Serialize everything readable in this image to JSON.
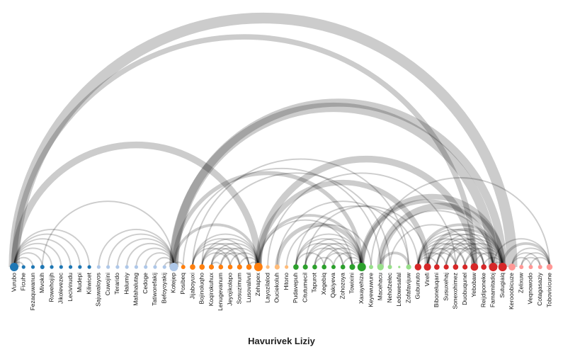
{
  "chart_data": {
    "type": "arc-diagram",
    "title": "Havurivek Liziy",
    "groups": {
      "blue": "#1f77b4",
      "lightblue": "#aec7e8",
      "orange": "#ff7f0e",
      "lightorange": "#ffbb78",
      "green": "#2ca02c",
      "lightgreen": "#98df8a",
      "red": "#d62728",
      "pink": "#ff9896"
    },
    "nodes": [
      {
        "name": "Vurubo",
        "group": "blue"
      },
      {
        "name": "Ficuhe",
        "group": "blue"
      },
      {
        "name": "Fezaquwanun",
        "group": "blue"
      },
      {
        "name": "Mivokih",
        "group": "blue"
      },
      {
        "name": "Rowehojijh",
        "group": "blue"
      },
      {
        "name": "Jikolevezec",
        "group": "blue"
      },
      {
        "name": "Lecivinudu",
        "group": "blue"
      },
      {
        "name": "Mudepi",
        "group": "blue"
      },
      {
        "name": "Kiliwicet",
        "group": "blue"
      },
      {
        "name": "Sajuwaloyos",
        "group": "lightblue"
      },
      {
        "name": "Cuwojini",
        "group": "lightblue"
      },
      {
        "name": "Terarido",
        "group": "lightblue"
      },
      {
        "name": "Halumiy",
        "group": "lightblue"
      },
      {
        "name": "Mafahalutag",
        "group": "lightblue"
      },
      {
        "name": "Cedoge",
        "group": "lightblue"
      },
      {
        "name": "Tatiworefakij",
        "group": "lightblue"
      },
      {
        "name": "Befoyoyakij",
        "group": "lightblue"
      },
      {
        "name": "Kotejep",
        "group": "lightblue"
      },
      {
        "name": "Posibeq",
        "group": "orange"
      },
      {
        "name": "Jijaboyuxi",
        "group": "orange"
      },
      {
        "name": "Bojinoluqho",
        "group": "orange"
      },
      {
        "name": "Koqirokuhux",
        "group": "orange"
      },
      {
        "name": "Lenugevanum",
        "group": "orange"
      },
      {
        "name": "Jeyojikolapo",
        "group": "orange"
      },
      {
        "name": "Sosuzimum",
        "group": "orange"
      },
      {
        "name": "Lusovalivul",
        "group": "orange"
      },
      {
        "name": "Zehapex",
        "group": "orange"
      },
      {
        "name": "Layozilalod",
        "group": "lightorange"
      },
      {
        "name": "Ouciekoluh",
        "group": "lightorange"
      },
      {
        "name": "Hitono",
        "group": "lightorange"
      },
      {
        "name": "Pudavepuh",
        "group": "green"
      },
      {
        "name": "Citutumecil",
        "group": "green"
      },
      {
        "name": "Tapurot",
        "group": "green"
      },
      {
        "name": "Xegebiq",
        "group": "green"
      },
      {
        "name": "Qakiyeva",
        "group": "green"
      },
      {
        "name": "Zohozoya",
        "group": "green"
      },
      {
        "name": "Towixini",
        "group": "green"
      },
      {
        "name": "Xaxayehiza",
        "group": "green"
      },
      {
        "name": "Keyewuwure",
        "group": "lightgreen"
      },
      {
        "name": "Macehacu",
        "group": "lightgreen"
      },
      {
        "name": "Nehofzelec",
        "group": "lightgreen"
      },
      {
        "name": "Ledowesafal",
        "group": "lightgreen"
      },
      {
        "name": "Zofafavijuw",
        "group": "lightgreen"
      },
      {
        "name": "Gubunuto",
        "group": "red"
      },
      {
        "name": "Virefi",
        "group": "red"
      },
      {
        "name": "Biboneluqani",
        "group": "red"
      },
      {
        "name": "Susuxehaj",
        "group": "red"
      },
      {
        "name": "Sonexohimez",
        "group": "red"
      },
      {
        "name": "Duobuqunel",
        "group": "red"
      },
      {
        "name": "Yebobaw",
        "group": "red"
      },
      {
        "name": "Reijdiponeke",
        "group": "red"
      },
      {
        "name": "Famamitadoj",
        "group": "red"
      },
      {
        "name": "Sutugiaiq",
        "group": "red"
      },
      {
        "name": "Kerooobicuze",
        "group": "pink"
      },
      {
        "name": "Zelixuw",
        "group": "pink"
      },
      {
        "name": "Veqnowodo",
        "group": "pink"
      },
      {
        "name": "Cotagasaziy",
        "group": "pink"
      },
      {
        "name": "Tobovixicune",
        "group": "pink"
      }
    ],
    "links": [
      {
        "source": "Vurubo",
        "target": "Kerooobicuze",
        "value": 8
      },
      {
        "source": "Vurubo",
        "target": "Yebobaw",
        "value": 4
      },
      {
        "source": "Vurubo",
        "target": "Zehapex",
        "value": 5
      },
      {
        "source": "Vurubo",
        "target": "Ficuhe",
        "value": 1
      },
      {
        "source": "Vurubo",
        "target": "Fezaquwanun",
        "value": 1
      },
      {
        "source": "Vurubo",
        "target": "Mivokih",
        "value": 1
      },
      {
        "source": "Vurubo",
        "target": "Rowehojijh",
        "value": 1
      },
      {
        "source": "Vurubo",
        "target": "Jikolevezec",
        "value": 1
      },
      {
        "source": "Vurubo",
        "target": "Lecivinudu",
        "value": 1
      },
      {
        "source": "Vurubo",
        "target": "Mudepi",
        "value": 1
      },
      {
        "source": "Vurubo",
        "target": "Kiliwicet",
        "value": 1
      },
      {
        "source": "Mivokih",
        "target": "Kotejep",
        "value": 1
      },
      {
        "source": "Sajuwaloyos",
        "target": "Kotejep",
        "value": 1
      },
      {
        "source": "Cuwojini",
        "target": "Kotejep",
        "value": 1
      },
      {
        "source": "Terarido",
        "target": "Kotejep",
        "value": 1
      },
      {
        "source": "Halumiy",
        "target": "Kotejep",
        "value": 1
      },
      {
        "source": "Mafahalutag",
        "target": "Kotejep",
        "value": 1
      },
      {
        "source": "Cedoge",
        "target": "Kotejep",
        "value": 1
      },
      {
        "source": "Tatiworefakij",
        "target": "Kotejep",
        "value": 1
      },
      {
        "source": "Befoyoyakij",
        "target": "Kotejep",
        "value": 1
      },
      {
        "source": "Kotejep",
        "target": "Famamitadoj",
        "value": 7
      },
      {
        "source": "Kotejep",
        "target": "Sutugiaiq",
        "value": 6
      },
      {
        "source": "Kotejep",
        "target": "Xaxayehiza",
        "value": 3
      },
      {
        "source": "Kotejep",
        "target": "Zehapex",
        "value": 2
      },
      {
        "source": "Kotejep",
        "target": "Posibeq",
        "value": 1
      },
      {
        "source": "Posibeq",
        "target": "Macehacu",
        "value": 1
      },
      {
        "source": "Jijaboyuxi",
        "target": "Zofafavijuw",
        "value": 1
      },
      {
        "source": "Bojinoluqho",
        "target": "Nehofzelec",
        "value": 1
      },
      {
        "source": "Jijaboyuxi",
        "target": "Zehapex",
        "value": 1
      },
      {
        "source": "Bojinoluqho",
        "target": "Zehapex",
        "value": 1
      },
      {
        "source": "Koqirokuhux",
        "target": "Zehapex",
        "value": 1
      },
      {
        "source": "Lenugevanum",
        "target": "Zehapex",
        "value": 1
      },
      {
        "source": "Jeyojikolapo",
        "target": "Zehapex",
        "value": 1
      },
      {
        "source": "Sosuzimum",
        "target": "Zehapex",
        "value": 1
      },
      {
        "source": "Lusovalivul",
        "target": "Zehapex",
        "value": 1
      },
      {
        "source": "Jijaboyuxi",
        "target": "Lusovalivul",
        "value": 1
      },
      {
        "source": "Bojinoluqho",
        "target": "Lusovalivul",
        "value": 1
      },
      {
        "source": "Koqirokuhux",
        "target": "Lusovalivul",
        "value": 1
      },
      {
        "source": "Lenugevanum",
        "target": "Lusovalivul",
        "value": 1
      },
      {
        "source": "Jijaboyuxi",
        "target": "Sosuzimum",
        "value": 1
      },
      {
        "source": "Bojinoluqho",
        "target": "Sosuzimum",
        "value": 1
      },
      {
        "source": "Koqirokuhux",
        "target": "Sosuzimum",
        "value": 1
      },
      {
        "source": "Jijaboyuxi",
        "target": "Jeyojikolapo",
        "value": 1
      },
      {
        "source": "Bojinoluqho",
        "target": "Jeyojikolapo",
        "value": 1
      },
      {
        "source": "Koqirokuhux",
        "target": "Lenugevanum",
        "value": 1
      },
      {
        "source": "Zehapex",
        "target": "Virefi",
        "value": 4
      },
      {
        "source": "Zehapex",
        "target": "Yebobaw",
        "value": 5
      },
      {
        "source": "Zehapex",
        "target": "Xaxayehiza",
        "value": 2
      },
      {
        "source": "Zehapex",
        "target": "Towixini",
        "value": 1
      },
      {
        "source": "Layozilalod",
        "target": "Sonexohimez",
        "value": 1
      },
      {
        "source": "Ouciekoluh",
        "target": "Zofafavijuw",
        "value": 1
      },
      {
        "source": "Ouciekoluh",
        "target": "Xaxayehiza",
        "value": 3
      },
      {
        "source": "Hitono",
        "target": "Keyewuwure",
        "value": 1
      },
      {
        "source": "Pudavepuh",
        "target": "Xaxayehiza",
        "value": 1
      },
      {
        "source": "Citutumecil",
        "target": "Xaxayehiza",
        "value": 1
      },
      {
        "source": "Tapurot",
        "target": "Xaxayehiza",
        "value": 1
      },
      {
        "source": "Xegebiq",
        "target": "Xaxayehiza",
        "value": 1
      },
      {
        "source": "Qakiyeva",
        "target": "Xaxayehiza",
        "value": 1
      },
      {
        "source": "Zohozoya",
        "target": "Xaxayehiza",
        "value": 1
      },
      {
        "source": "Towixini",
        "target": "Xaxayehiza",
        "value": 1
      },
      {
        "source": "Pudavepuh",
        "target": "Towixini",
        "value": 1
      },
      {
        "source": "Citutumecil",
        "target": "Towixini",
        "value": 1
      },
      {
        "source": "Tapurot",
        "target": "Towixini",
        "value": 1
      },
      {
        "source": "Xegebiq",
        "target": "Towixini",
        "value": 1
      },
      {
        "source": "Pudavepuh",
        "target": "Zohozoya",
        "value": 1
      },
      {
        "source": "Citutumecil",
        "target": "Zohozoya",
        "value": 1
      },
      {
        "source": "Tapurot",
        "target": "Qakiyeva",
        "value": 1
      },
      {
        "source": "Pudavepuh",
        "target": "Xegebiq",
        "value": 1
      },
      {
        "source": "Xaxayehiza",
        "target": "Sutugiaiq",
        "value": 4
      },
      {
        "source": "Xaxayehiza",
        "target": "Famamitadoj",
        "value": 3
      },
      {
        "source": "Pudavepuh",
        "target": "Gubunuto",
        "value": 1
      },
      {
        "source": "Citutumecil",
        "target": "Virefi",
        "value": 1
      },
      {
        "source": "Keyewuwure",
        "target": "Tobovixicune",
        "value": 1
      },
      {
        "source": "Macehacu",
        "target": "Sutugiaiq",
        "value": 5
      },
      {
        "source": "Macehacu",
        "target": "Zofafavijuw",
        "value": 2
      },
      {
        "source": "Macehacu",
        "target": "Famamitadoj",
        "value": 1
      },
      {
        "source": "Nehofzelec",
        "target": "Yebobaw",
        "value": 1
      },
      {
        "source": "Gubunuto",
        "target": "Sutugiaiq",
        "value": 2
      },
      {
        "source": "Gubunuto",
        "target": "Famamitadoj",
        "value": 1
      },
      {
        "source": "Gubunuto",
        "target": "Reijdiponeke",
        "value": 1
      },
      {
        "source": "Gubunuto",
        "target": "Yebobaw",
        "value": 1
      },
      {
        "source": "Gubunuto",
        "target": "Duobuqunel",
        "value": 1
      },
      {
        "source": "Gubunuto",
        "target": "Sonexohimez",
        "value": 1
      },
      {
        "source": "Virefi",
        "target": "Sutugiaiq",
        "value": 2
      },
      {
        "source": "Virefi",
        "target": "Famamitadoj",
        "value": 1
      },
      {
        "source": "Virefi",
        "target": "Reijdiponeke",
        "value": 1
      },
      {
        "source": "Virefi",
        "target": "Yebobaw",
        "value": 1
      },
      {
        "source": "Virefi",
        "target": "Duobuqunel",
        "value": 1
      },
      {
        "source": "Biboneluqani",
        "target": "Sutugiaiq",
        "value": 1
      },
      {
        "source": "Biboneluqani",
        "target": "Famamitadoj",
        "value": 1
      },
      {
        "source": "Biboneluqani",
        "target": "Reijdiponeke",
        "value": 1
      },
      {
        "source": "Biboneluqani",
        "target": "Yebobaw",
        "value": 1
      },
      {
        "source": "Susuxehaj",
        "target": "Sutugiaiq",
        "value": 1
      },
      {
        "source": "Susuxehaj",
        "target": "Famamitadoj",
        "value": 1
      },
      {
        "source": "Susuxehaj",
        "target": "Reijdiponeke",
        "value": 1
      },
      {
        "source": "Sonexohimez",
        "target": "Sutugiaiq",
        "value": 1
      },
      {
        "source": "Sonexohimez",
        "target": "Famamitadoj",
        "value": 1
      },
      {
        "source": "Duobuqunel",
        "target": "Sutugiaiq",
        "value": 1
      },
      {
        "source": "Duobuqunel",
        "target": "Famamitadoj",
        "value": 1
      },
      {
        "source": "Yebobaw",
        "target": "Sutugiaiq",
        "value": 1
      },
      {
        "source": "Reijdiponeke",
        "target": "Sutugiaiq",
        "value": 1
      },
      {
        "source": "Famamitadoj",
        "target": "Sutugiaiq",
        "value": 1
      },
      {
        "source": "Gubunuto",
        "target": "Biboneluqani",
        "value": 1
      },
      {
        "source": "Gubunuto",
        "target": "Susuxehaj",
        "value": 1
      },
      {
        "source": "Virefi",
        "target": "Sonexohimez",
        "value": 1
      },
      {
        "source": "Sutugiaiq",
        "target": "Tobovixicune",
        "value": 2
      },
      {
        "source": "Famamitadoj",
        "target": "Tobovixicune",
        "value": 1
      },
      {
        "source": "Kerooobicuze",
        "target": "Tobovixicune",
        "value": 1
      },
      {
        "source": "Kerooobicuze",
        "target": "Cotagasaziy",
        "value": 1
      },
      {
        "source": "Kerooobicuze",
        "target": "Veqnowodo",
        "value": 1
      },
      {
        "source": "Zelixuw",
        "target": "Tobovixicune",
        "value": 1
      },
      {
        "source": "Zelixuw",
        "target": "Cotagasaziy",
        "value": 1
      },
      {
        "source": "Veqnowodo",
        "target": "Tobovixicune",
        "value": 1
      }
    ]
  }
}
